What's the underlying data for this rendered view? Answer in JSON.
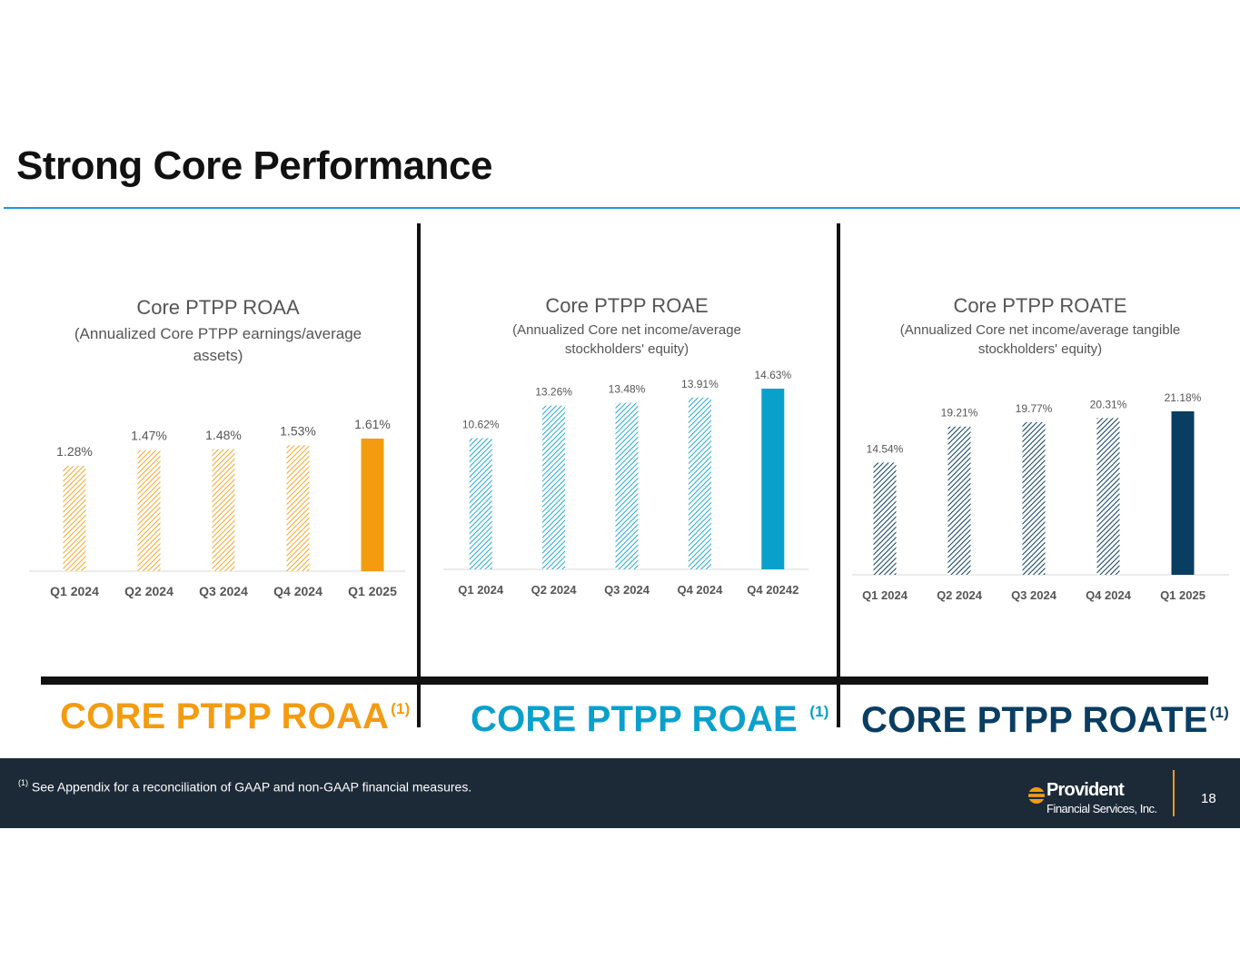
{
  "slide": {
    "title": "Strong Core Performance",
    "page_number": "18",
    "footnote_marker": "(1)",
    "footnote_text": " See Appendix for a reconciliation of GAAP and non-GAAP financial measures.",
    "logo_name": "Provident",
    "logo_sub": "Financial Services, Inc."
  },
  "metrics": [
    {
      "label": "CORE PTPP ROAA",
      "sup": "(1)",
      "color": "#f39c12"
    },
    {
      "label": "CORE PTPP ROAE ",
      "sup": "(1)",
      "color": "#0aa0cc"
    },
    {
      "label": "CORE PTPP ROATE",
      "sup": "(1)",
      "color": "#0a3d62"
    }
  ],
  "chart_data": [
    {
      "type": "bar",
      "title": "Core PTPP ROAA",
      "subtitle": [
        "(Annualized Core PTPP earnings/average",
        "assets)"
      ],
      "categories": [
        "Q1 2024",
        "Q2 2024",
        "Q3 2024",
        "Q4 2024",
        "Q1 2025"
      ],
      "values": [
        1.28,
        1.47,
        1.48,
        1.53,
        1.61
      ],
      "value_labels": [
        "1.28%",
        "1.47%",
        "1.48%",
        "1.53%",
        "1.61%"
      ],
      "ylim": [
        0,
        1.61
      ],
      "color": "#f39c12",
      "hatched": [
        true,
        true,
        true,
        true,
        false
      ]
    },
    {
      "type": "bar",
      "title": "Core PTPP ROAE",
      "subtitle": [
        "(Annualized Core net income/average",
        "stockholders' equity)"
      ],
      "categories": [
        "Q1 2024",
        "Q2 2024",
        "Q3 2024",
        "Q4 2024",
        "Q4 20242"
      ],
      "values": [
        10.62,
        13.26,
        13.48,
        13.91,
        14.63
      ],
      "value_labels": [
        "10.62%",
        "13.26%",
        "13.48%",
        "13.91%",
        "14.63%"
      ],
      "ylim": [
        0,
        14.63
      ],
      "color": "#0aa0cc",
      "hatched": [
        true,
        true,
        true,
        true,
        false
      ]
    },
    {
      "type": "bar",
      "title": "Core PTPP ROATE",
      "subtitle": [
        "(Annualized Core net income/average tangible",
        "stockholders' equity)"
      ],
      "categories": [
        "Q1 2024",
        "Q2 2024",
        "Q3 2024",
        "Q4 2024",
        "Q1 2025"
      ],
      "values": [
        14.54,
        19.21,
        19.77,
        20.31,
        21.18
      ],
      "value_labels": [
        "14.54%",
        "19.21%",
        "19.77%",
        "20.31%",
        "21.18%"
      ],
      "ylim": [
        0,
        21.18
      ],
      "color": "#0a3d62",
      "hatched": [
        true,
        true,
        true,
        true,
        false
      ]
    }
  ]
}
